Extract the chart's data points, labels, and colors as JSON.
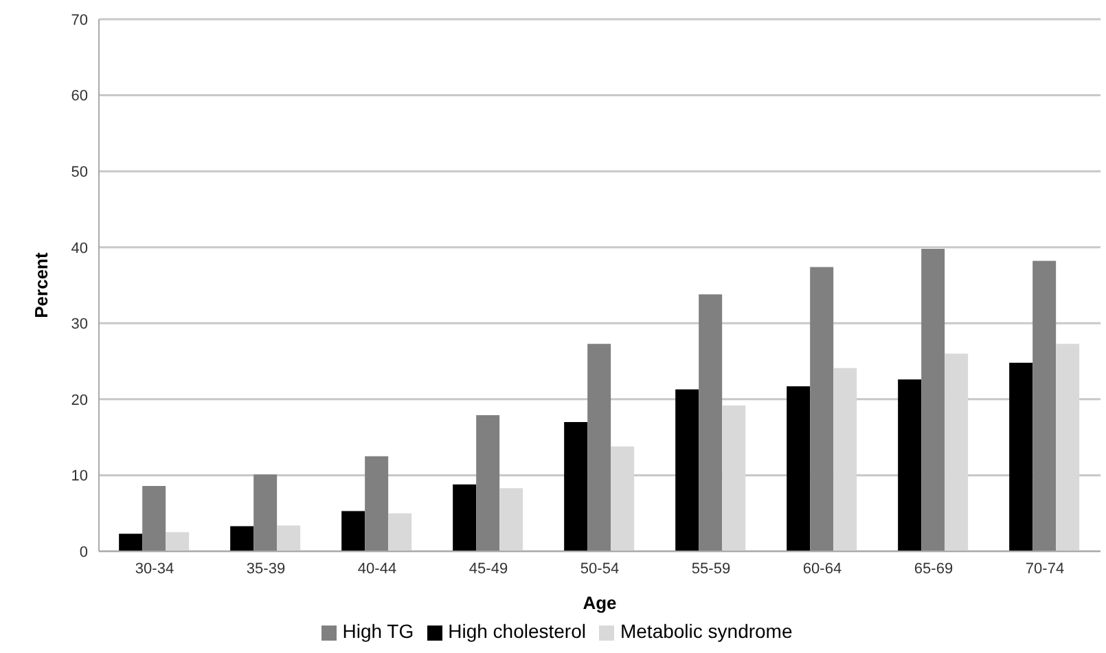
{
  "chart_data": {
    "type": "bar",
    "xlabel": "Age",
    "ylabel": "Percent",
    "categories": [
      "30-34",
      "35-39",
      "40-44",
      "45-49",
      "50-54",
      "55-59",
      "60-64",
      "65-69",
      "70-74"
    ],
    "series": [
      {
        "name": "High cholesterol",
        "color": "#000000",
        "values": [
          2.3,
          3.3,
          5.3,
          8.8,
          17.0,
          21.3,
          21.7,
          22.6,
          24.8
        ]
      },
      {
        "name": "High TG",
        "color": "#808080",
        "values": [
          8.6,
          10.1,
          12.5,
          17.9,
          27.3,
          33.8,
          37.4,
          39.8,
          38.2
        ]
      },
      {
        "name": "Metabolic syndrome",
        "color": "#d9d9d9",
        "values": [
          2.5,
          3.4,
          5.0,
          8.3,
          13.8,
          19.2,
          24.1,
          26.0,
          27.3
        ]
      }
    ],
    "ylim": [
      0,
      70
    ],
    "yticks": [
      0,
      10,
      20,
      30,
      40,
      50,
      60,
      70
    ],
    "grid": "y",
    "legend": "bottom"
  }
}
